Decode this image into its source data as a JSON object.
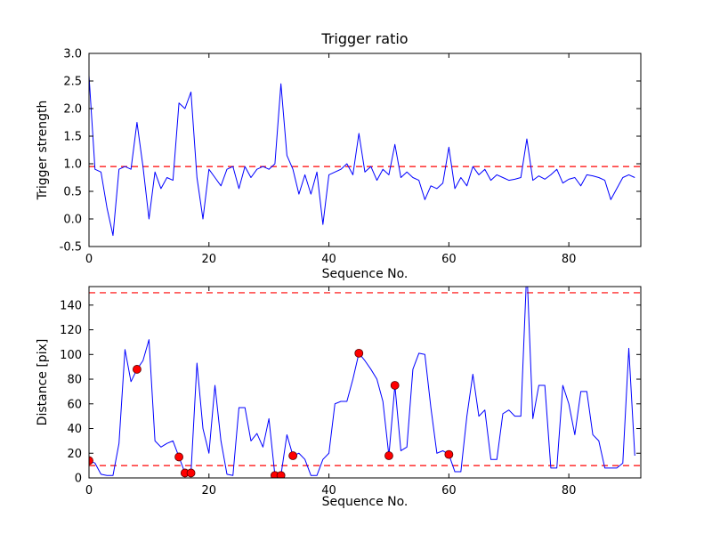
{
  "figure": {
    "background_color": "#ffffff",
    "line_color": "#0000ff",
    "threshold_color": "#ff0000",
    "marker_color": "#ff0000",
    "axis_color": "#000000"
  },
  "chart_data": [
    {
      "type": "line",
      "title": "Trigger ratio",
      "xlabel": "Sequence No.",
      "ylabel": "Trigger strength",
      "xlim": [
        0,
        92
      ],
      "ylim": [
        -0.5,
        3.0
      ],
      "xticks": [
        0,
        20,
        40,
        60,
        80
      ],
      "xtick_labels": [
        "0",
        "20",
        "40",
        "60",
        "80"
      ],
      "yticks": [
        -0.5,
        0.0,
        0.5,
        1.0,
        1.5,
        2.0,
        2.5,
        3.0
      ],
      "ytick_labels": [
        "-0.5",
        "0.0",
        "0.5",
        "1.0",
        "1.5",
        "2.0",
        "2.5",
        "3.0"
      ],
      "grid": false,
      "legend": false,
      "x_start": 0,
      "x_step": 1,
      "thresholds": [
        0.95
      ],
      "threshold_style": "dashed",
      "values": [
        2.6,
        0.9,
        0.85,
        0.2,
        -0.3,
        0.9,
        0.95,
        0.9,
        1.75,
        0.95,
        0.0,
        0.85,
        0.55,
        0.75,
        0.7,
        2.1,
        2.0,
        2.3,
        0.75,
        0.0,
        0.9,
        0.75,
        0.6,
        0.9,
        0.95,
        0.55,
        0.95,
        0.75,
        0.9,
        0.95,
        0.9,
        1.0,
        2.45,
        1.15,
        0.9,
        0.45,
        0.8,
        0.45,
        0.85,
        -0.1,
        0.8,
        0.85,
        0.9,
        1.0,
        0.8,
        1.55,
        0.85,
        0.95,
        0.7,
        0.9,
        0.8,
        1.35,
        0.75,
        0.85,
        0.75,
        0.7,
        0.35,
        0.6,
        0.55,
        0.65,
        1.3,
        0.55,
        0.75,
        0.6,
        0.95,
        0.8,
        0.9,
        0.7,
        0.8,
        0.75,
        0.7,
        0.72,
        0.75,
        1.45,
        0.7,
        0.78,
        0.72,
        0.8,
        0.9,
        0.65,
        0.72,
        0.75,
        0.6,
        0.8,
        0.78,
        0.75,
        0.7,
        0.35,
        0.55,
        0.75,
        0.8,
        0.75
      ]
    },
    {
      "type": "line",
      "title": "",
      "xlabel": "Sequence No.",
      "ylabel": "Distance [pix]",
      "xlim": [
        0,
        92
      ],
      "ylim": [
        0,
        155
      ],
      "xticks": [
        0,
        20,
        40,
        60,
        80
      ],
      "xtick_labels": [
        "0",
        "20",
        "40",
        "60",
        "80"
      ],
      "yticks": [
        0,
        20,
        40,
        60,
        80,
        100,
        120,
        140
      ],
      "ytick_labels": [
        "0",
        "20",
        "40",
        "60",
        "80",
        "100",
        "120",
        "140"
      ],
      "grid": false,
      "legend": false,
      "x_start": 0,
      "x_step": 1,
      "thresholds": [
        10,
        150
      ],
      "threshold_style": "dashed",
      "values": [
        14,
        12,
        3,
        2,
        2,
        28,
        104,
        78,
        88,
        95,
        112,
        30,
        25,
        28,
        30,
        17,
        4,
        4,
        93,
        40,
        20,
        75,
        30,
        3,
        2,
        57,
        57,
        30,
        36,
        25,
        48,
        2,
        2,
        35,
        18,
        20,
        15,
        2,
        2,
        15,
        20,
        60,
        62,
        62,
        80,
        101,
        95,
        88,
        80,
        62,
        18,
        75,
        22,
        25,
        88,
        101,
        100,
        57,
        20,
        22,
        19,
        5,
        5,
        50,
        84,
        50,
        55,
        15,
        15,
        52,
        55,
        50,
        50,
        170,
        48,
        75,
        75,
        8,
        8,
        75,
        60,
        35,
        70,
        70,
        35,
        30,
        8,
        8,
        8,
        12,
        105,
        18
      ],
      "markers": [
        [
          0,
          14
        ],
        [
          8,
          88
        ],
        [
          15,
          17
        ],
        [
          16,
          4
        ],
        [
          17,
          4
        ],
        [
          31,
          2
        ],
        [
          32,
          2
        ],
        [
          34,
          18
        ],
        [
          45,
          101
        ],
        [
          50,
          18
        ],
        [
          51,
          75
        ],
        [
          60,
          19
        ]
      ]
    }
  ]
}
